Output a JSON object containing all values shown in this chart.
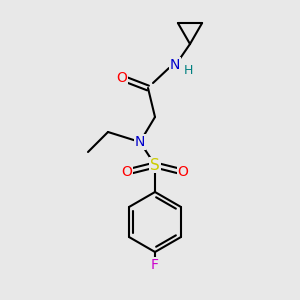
{
  "bg_color": "#e8e8e8",
  "atom_colors": {
    "C": "#000000",
    "N": "#0000cc",
    "O": "#ff0000",
    "S": "#cccc00",
    "F": "#cc00cc",
    "H": "#008080"
  },
  "bond_color": "#000000",
  "bond_lw": 1.5,
  "double_sep": 2.5,
  "ring_inner_sep": 4.0
}
